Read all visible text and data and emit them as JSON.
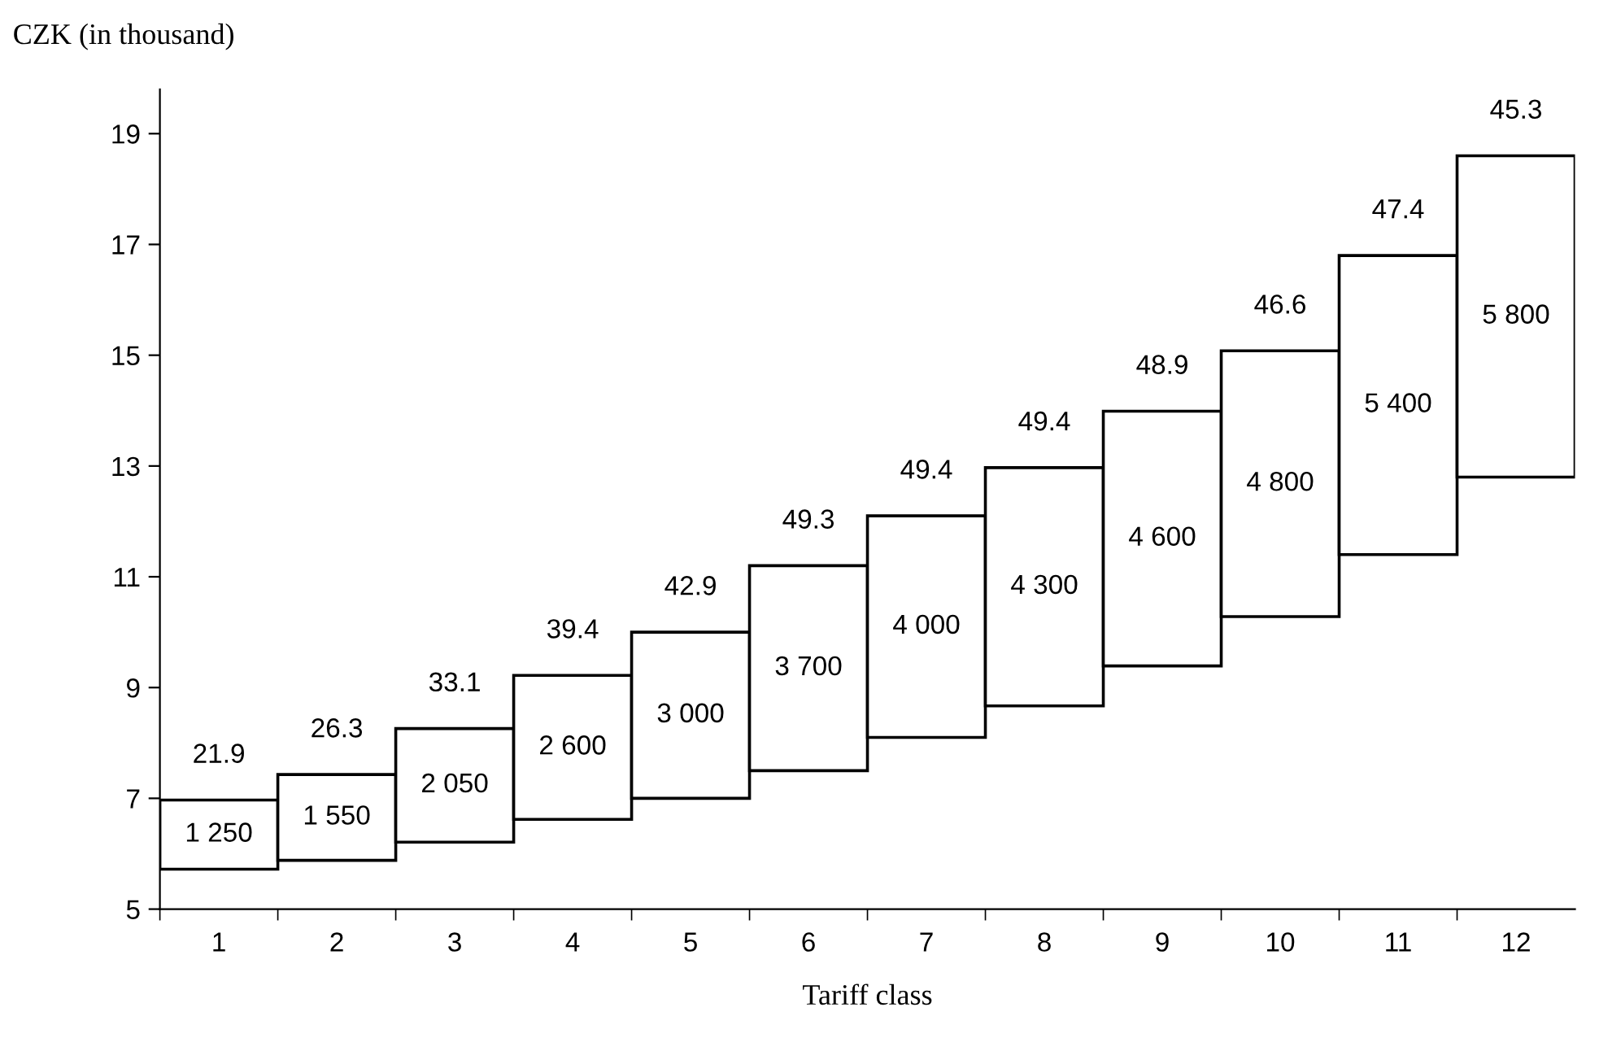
{
  "chart_data": {
    "type": "bar",
    "ylabel": "CZK (in thousand)",
    "xlabel": "Tariff class",
    "categories": [
      "1",
      "2",
      "3",
      "4",
      "5",
      "6",
      "7",
      "8",
      "9",
      "10",
      "11",
      "12"
    ],
    "base": [
      5.72,
      5.88,
      6.21,
      6.62,
      7.0,
      7.5,
      8.1,
      8.67,
      9.39,
      10.28,
      11.4,
      12.8
    ],
    "values": [
      1.25,
      1.55,
      2.05,
      2.6,
      3.0,
      3.7,
      4.0,
      4.3,
      4.6,
      4.8,
      5.4,
      5.8
    ],
    "color": "#ffffff",
    "annotations": [
      "1 250",
      "1 550",
      "2 050",
      "2 600",
      "3 000",
      "3 700",
      "4 000",
      "4 300",
      "4 600",
      "4 800",
      "5 400",
      "5 800",
      {
        "text": "21.9",
        "x": "1",
        "y": 6.97
      },
      {
        "text": "26.3",
        "x": "2",
        "y": 7.43
      },
      {
        "text": "33.1",
        "x": "3",
        "y": 8.26
      },
      {
        "text": "39.4",
        "x": "4",
        "y": 9.22
      },
      {
        "text": "42.9",
        "x": "5",
        "y": 10.0
      },
      {
        "text": "49.3",
        "x": "6",
        "y": 11.2
      },
      {
        "text": "49.4",
        "x": "7",
        "y": 12.1
      },
      {
        "text": "49.4",
        "x": "8",
        "y": 12.97
      },
      {
        "text": "48.9",
        "x": "9",
        "y": 13.99
      },
      {
        "text": "46.6",
        "x": "10",
        "y": 15.08
      },
      {
        "text": "47.4",
        "x": "11",
        "y": 16.8
      },
      {
        "text": "45.3",
        "x": "12",
        "y": 18.6
      }
    ],
    "ylim": [
      5,
      19.8
    ],
    "yticks": [
      5,
      7,
      9,
      11,
      13,
      15,
      17,
      19
    ],
    "grid": false,
    "legend": false
  }
}
